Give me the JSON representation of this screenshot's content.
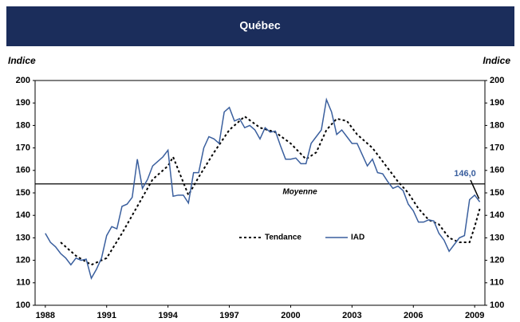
{
  "chart_data": {
    "type": "line",
    "title": "Québec",
    "y_label": "Indice",
    "y2_label": "Indice",
    "xlim": [
      1987.5,
      2009.5
    ],
    "xticks": [
      1988,
      1991,
      1994,
      1997,
      2000,
      2003,
      2006,
      2009
    ],
    "ylim": [
      100,
      200
    ],
    "yticks": [
      100,
      110,
      120,
      130,
      140,
      150,
      160,
      170,
      180,
      190,
      200
    ],
    "y2lim": [
      100,
      200
    ],
    "y2ticks": [
      100,
      110,
      120,
      130,
      140,
      150,
      160,
      170,
      180,
      190,
      200
    ],
    "reference_line": {
      "label": "Moyenne",
      "value": 154,
      "color": "#000000"
    },
    "annotation": "146,0",
    "series": [
      {
        "name": "Tendance",
        "color": "#000000",
        "dash": "3,3",
        "x": [
          1988.75,
          1989.5,
          1990.25,
          1991.0,
          1991.75,
          1992.5,
          1993.25,
          1994.0,
          1994.25,
          1995.0,
          1995.5,
          1996.25,
          1997.0,
          1997.75,
          1998.5,
          1999.25,
          2000.0,
          2000.75,
          2001.25,
          2001.75,
          2002.25,
          2002.75,
          2003.25,
          2004.0,
          2004.75,
          2005.25,
          2005.75,
          2006.25,
          2006.75,
          2007.25,
          2007.75,
          2008.25,
          2008.75,
          2009.0,
          2009.25
        ],
        "values": [
          128,
          122,
          118,
          121,
          132,
          144,
          156,
          162,
          166,
          149,
          157,
          168,
          178,
          184,
          179,
          177,
          172,
          165,
          168,
          178,
          183,
          182,
          176,
          170,
          161,
          155,
          150,
          143,
          138,
          136,
          130,
          128,
          128,
          135,
          143
        ]
      },
      {
        "name": "IAD",
        "color": "#3a5f9e",
        "dash": null,
        "x": [
          1988.0,
          1988.25,
          1988.5,
          1988.75,
          1989.0,
          1989.25,
          1989.5,
          1989.75,
          1990.0,
          1990.25,
          1990.5,
          1990.75,
          1991.0,
          1991.25,
          1991.5,
          1991.75,
          1992.0,
          1992.25,
          1992.5,
          1992.75,
          1993.0,
          1993.25,
          1993.5,
          1993.75,
          1994.0,
          1994.25,
          1994.5,
          1994.75,
          1995.0,
          1995.25,
          1995.5,
          1995.75,
          1996.0,
          1996.25,
          1996.5,
          1996.75,
          1997.0,
          1997.25,
          1997.5,
          1997.75,
          1998.0,
          1998.25,
          1998.5,
          1998.75,
          1999.0,
          1999.25,
          1999.5,
          1999.75,
          2000.0,
          2000.25,
          2000.5,
          2000.75,
          2001.0,
          2001.25,
          2001.5,
          2001.75,
          2002.0,
          2002.25,
          2002.5,
          2002.75,
          2003.0,
          2003.25,
          2003.5,
          2003.75,
          2004.0,
          2004.25,
          2004.5,
          2004.75,
          2005.0,
          2005.25,
          2005.5,
          2005.75,
          2006.0,
          2006.25,
          2006.5,
          2006.75,
          2007.0,
          2007.25,
          2007.5,
          2007.75,
          2008.0,
          2008.25,
          2008.5,
          2008.75,
          2009.0,
          2009.25
        ],
        "values": [
          132,
          128,
          126,
          123,
          121,
          118,
          121,
          120,
          120.5,
          112,
          116,
          121,
          131,
          135,
          134,
          144,
          145,
          148,
          165,
          152,
          156,
          162,
          164,
          166,
          169,
          148.5,
          149,
          149,
          145.5,
          159,
          159,
          170,
          175,
          174,
          172,
          186,
          188,
          182,
          183,
          179,
          180,
          178,
          174,
          179,
          177,
          177.5,
          171,
          165,
          165,
          165.5,
          163,
          163,
          172,
          175,
          178,
          191.5,
          186,
          176,
          178,
          175,
          172,
          172,
          167,
          162,
          165,
          159,
          158.5,
          155,
          152,
          153,
          151,
          145,
          142,
          137,
          137,
          138,
          137.5,
          132,
          129,
          124,
          127,
          130,
          131,
          147,
          149,
          146
        ]
      }
    ]
  }
}
